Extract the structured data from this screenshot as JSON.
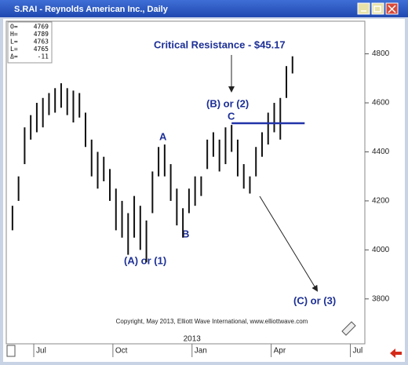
{
  "window_title": "S.RAI - Reynolds American Inc., Daily",
  "chart_data": {
    "type": "ohlc",
    "readout": [
      {
        "label": "O=",
        "value": 4769
      },
      {
        "label": "H=",
        "value": 4789
      },
      {
        "label": "L=",
        "value": 4763
      },
      {
        "label": "L=",
        "value": 4765
      },
      {
        "label": "Δ=",
        "value": -11
      }
    ],
    "categories": [
      null,
      null,
      null,
      null,
      "Jul",
      null,
      null,
      null,
      null,
      null,
      null,
      null,
      null,
      null,
      null,
      null,
      null,
      "Oct",
      null,
      null,
      null,
      null,
      null,
      null,
      null,
      null,
      null,
      null,
      null,
      null,
      "Jan",
      null,
      null,
      null,
      null,
      null,
      null,
      null,
      null,
      null,
      null,
      null,
      null,
      "Apr",
      null,
      null,
      null,
      null,
      null,
      null,
      null,
      null,
      null,
      null,
      null,
      null,
      "Jul",
      null
    ],
    "year_label": "2013",
    "high": [
      4180,
      4300,
      4500,
      4550,
      4600,
      4620,
      4640,
      4660,
      4680,
      4660,
      4650,
      4640,
      4560,
      4450,
      4400,
      4380,
      4330,
      4250,
      4200,
      4150,
      4220,
      4180,
      4120,
      4320,
      4420,
      4430,
      4350,
      4250,
      4170,
      4250,
      4300,
      4300,
      4450,
      4480,
      4450,
      4500,
      4510,
      4450,
      4350,
      4300,
      4420,
      4480,
      4560,
      4600,
      4620,
      4750,
      4790,
      null,
      null,
      null,
      null,
      null,
      null,
      null,
      null,
      null,
      null,
      null
    ],
    "low": [
      4080,
      4200,
      4350,
      4450,
      4480,
      4500,
      4550,
      4560,
      4580,
      4550,
      4520,
      4540,
      4420,
      4300,
      4250,
      4280,
      4200,
      4080,
      4050,
      3980,
      4050,
      4000,
      3950,
      4150,
      4300,
      4300,
      4200,
      4100,
      4050,
      4150,
      4180,
      4220,
      4330,
      4380,
      4320,
      4350,
      4400,
      4300,
      4250,
      4230,
      4300,
      4380,
      4430,
      4480,
      4450,
      4620,
      4720,
      null,
      null,
      null,
      null,
      null,
      null,
      null,
      null,
      null,
      null,
      null
    ],
    "bar_color": "#111111",
    "ylim": [
      3620,
      4930
    ],
    "yticks": [
      3800,
      4000,
      4200,
      4400,
      4600,
      4800
    ],
    "resistance_level": 4517,
    "resistance_color": "#2233aa",
    "annotations": {
      "resistance": "Critical Resistance - $45.17",
      "wave_b2": "(B) or (2)",
      "wave_c_minor": "C",
      "wave_a_minor": "A",
      "wave_b_minor": "B",
      "wave_a1": "(A) or (1)",
      "wave_c3": "(C) or (3)"
    },
    "copyright": "Copyright, May 2013, Elliott Wave International, www.elliottwave.com"
  }
}
